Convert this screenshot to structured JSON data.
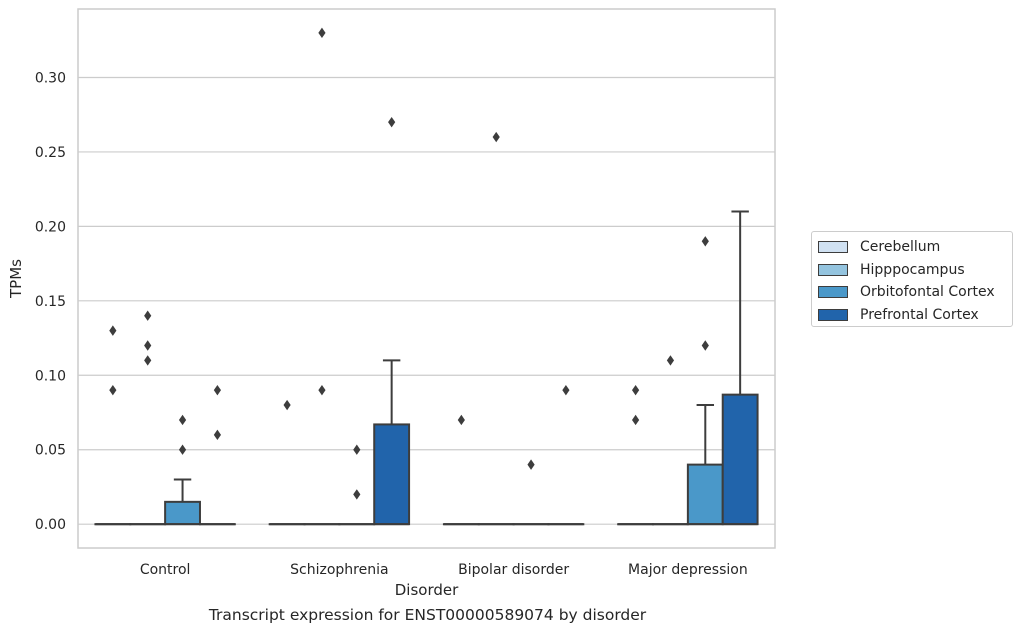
{
  "chart_data": {
    "type": "box",
    "xlabel": "Disorder",
    "ylabel": "TPMs",
    "caption": "Transcript expression for ENST00000589074 by disorder",
    "categories": [
      "Control",
      "Schizophrenia",
      "Bipolar disorder",
      "Major depression"
    ],
    "ylim": [
      -0.016,
      0.346
    ],
    "yticks": [
      0.0,
      0.05,
      0.1,
      0.15,
      0.2,
      0.25,
      0.3
    ],
    "ytick_labels": [
      "0.00",
      "0.05",
      "0.10",
      "0.15",
      "0.20",
      "0.25",
      "0.30"
    ],
    "grid": true,
    "legend_position": "right",
    "series": [
      {
        "name": "Cerebellum",
        "color": "#d0e1f2",
        "boxes": [
          {
            "q1": 0,
            "median": 0,
            "q3": 0,
            "whisker_low": 0,
            "whisker_high": 0,
            "outliers": [
              0.13,
              0.09
            ]
          },
          {
            "q1": 0,
            "median": 0,
            "q3": 0,
            "whisker_low": 0,
            "whisker_high": 0,
            "outliers": [
              0.08
            ]
          },
          {
            "q1": 0,
            "median": 0,
            "q3": 0,
            "whisker_low": 0,
            "whisker_high": 0,
            "outliers": [
              0.07
            ]
          },
          {
            "q1": 0,
            "median": 0,
            "q3": 0,
            "whisker_low": 0,
            "whisker_high": 0,
            "outliers": [
              0.09,
              0.07
            ]
          }
        ]
      },
      {
        "name": "Hipppocampus",
        "color": "#94c4df",
        "boxes": [
          {
            "q1": 0,
            "median": 0,
            "q3": 0,
            "whisker_low": 0,
            "whisker_high": 0,
            "outliers": [
              0.14,
              0.12,
              0.11
            ]
          },
          {
            "q1": 0,
            "median": 0,
            "q3": 0,
            "whisker_low": 0,
            "whisker_high": 0,
            "outliers": [
              0.33,
              0.09
            ]
          },
          {
            "q1": 0,
            "median": 0,
            "q3": 0,
            "whisker_low": 0,
            "whisker_high": 0,
            "outliers": [
              0.26
            ]
          },
          {
            "q1": 0,
            "median": 0,
            "q3": 0,
            "whisker_low": 0,
            "whisker_high": 0,
            "outliers": [
              0.11
            ]
          }
        ]
      },
      {
        "name": "Orbitofontal Cortex",
        "color": "#4a98c9",
        "boxes": [
          {
            "q1": 0,
            "median": 0,
            "q3": 0.015,
            "whisker_low": 0,
            "whisker_high": 0.03,
            "outliers": [
              0.07,
              0.05
            ]
          },
          {
            "q1": 0,
            "median": 0,
            "q3": 0,
            "whisker_low": 0,
            "whisker_high": 0,
            "outliers": [
              0.05,
              0.02
            ]
          },
          {
            "q1": 0,
            "median": 0,
            "q3": 0,
            "whisker_low": 0,
            "whisker_high": 0,
            "outliers": [
              0.04
            ]
          },
          {
            "q1": 0,
            "median": 0,
            "q3": 0.04,
            "whisker_low": 0,
            "whisker_high": 0.08,
            "outliers": [
              0.19,
              0.12
            ]
          }
        ]
      },
      {
        "name": "Prefrontal Cortex",
        "color": "#2164ab",
        "boxes": [
          {
            "q1": 0,
            "median": 0,
            "q3": 0,
            "whisker_low": 0,
            "whisker_high": 0,
            "outliers": [
              0.09,
              0.06
            ]
          },
          {
            "q1": 0,
            "median": 0,
            "q3": 0.067,
            "whisker_low": 0,
            "whisker_high": 0.11,
            "outliers": [
              0.27
            ]
          },
          {
            "q1": 0,
            "median": 0,
            "q3": 0,
            "whisker_low": 0,
            "whisker_high": 0,
            "outliers": [
              0.09
            ]
          },
          {
            "q1": 0,
            "median": 0,
            "q3": 0.087,
            "whisker_low": 0,
            "whisker_high": 0.21,
            "outliers": []
          }
        ]
      }
    ]
  },
  "legend": {
    "items": [
      {
        "label": "Cerebellum",
        "color": "#d0e1f2"
      },
      {
        "label": "Hipppocampus",
        "color": "#94c4df"
      },
      {
        "label": "Orbitofontal Cortex",
        "color": "#4a98c9"
      },
      {
        "label": "Prefrontal Cortex",
        "color": "#2164ab"
      }
    ]
  }
}
